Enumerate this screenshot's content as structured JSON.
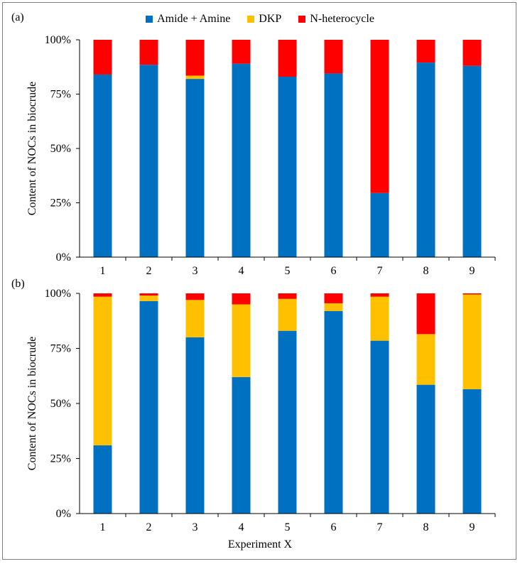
{
  "colors": {
    "amide_amine": "#0070c0",
    "dkp": "#ffc000",
    "n_heterocycle": "#ff0000",
    "axis": "#000000",
    "frame": "#7f7f7f"
  },
  "chart_data": [
    {
      "type": "bar",
      "stacked": true,
      "panel_label": "(a)",
      "categories": [
        "1",
        "2",
        "3",
        "4",
        "5",
        "6",
        "7",
        "8",
        "9"
      ],
      "series": [
        {
          "name": "Amide + Amine",
          "values": [
            84,
            88.5,
            82,
            89,
            83,
            84.5,
            29.5,
            89.5,
            88
          ]
        },
        {
          "name": "DKP",
          "values": [
            0,
            0,
            1.5,
            0,
            0,
            0,
            0,
            0,
            0
          ]
        },
        {
          "name": "N-heterocycle",
          "values": [
            16,
            11.5,
            16.5,
            11,
            17,
            15.5,
            70.5,
            10.5,
            12
          ]
        }
      ],
      "ylabel": "Content of NOCs in biocrude",
      "xlabel": "",
      "ylim": [
        0,
        100
      ],
      "yticks": [
        "0%",
        "25%",
        "50%",
        "75%",
        "100%"
      ]
    },
    {
      "type": "bar",
      "stacked": true,
      "panel_label": "(b)",
      "categories": [
        "1",
        "2",
        "3",
        "4",
        "5",
        "6",
        "7",
        "8",
        "9"
      ],
      "series": [
        {
          "name": "Amide + Amine",
          "values": [
            31,
            96.5,
            80,
            62,
            83,
            92,
            78.5,
            58.5,
            56.5
          ]
        },
        {
          "name": "DKP",
          "values": [
            67.5,
            2.5,
            17,
            33,
            14.5,
            3.5,
            20,
            23,
            43
          ]
        },
        {
          "name": "N-heterocycle",
          "values": [
            1.5,
            1,
            3,
            5,
            2.5,
            4.5,
            1.5,
            18.5,
            0.5
          ]
        }
      ],
      "ylabel": "Content of NOCs in biocrude",
      "xlabel": "Experiment X",
      "ylim": [
        0,
        100
      ],
      "yticks": [
        "0%",
        "25%",
        "50%",
        "75%",
        "100%"
      ]
    }
  ],
  "legend": {
    "items": [
      "Amide + Amine",
      "DKP",
      "N-heterocycle"
    ],
    "placement": "top-center"
  }
}
